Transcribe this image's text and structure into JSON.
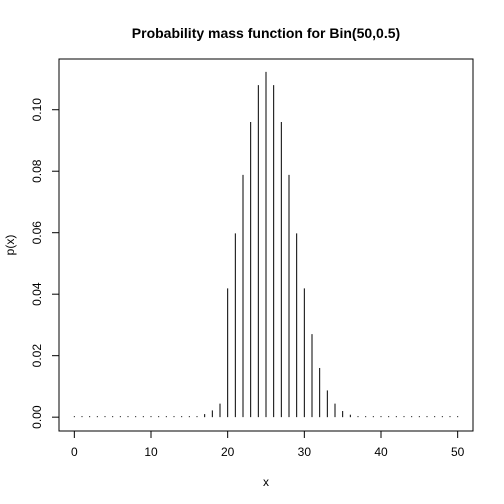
{
  "chart_data": {
    "type": "bar",
    "title": "Probability mass function for Bin(50,0.5)",
    "xlabel": "x",
    "ylabel": "p(x)",
    "xlim": [
      -2,
      52
    ],
    "ylim": [
      -0.0045,
      0.1165
    ],
    "x_ticks": [
      0,
      10,
      20,
      30,
      40,
      50
    ],
    "x_tick_labels": [
      "0",
      "10",
      "20",
      "30",
      "40",
      "50"
    ],
    "y_ticks": [
      0.0,
      0.02,
      0.04,
      0.06,
      0.08,
      0.1
    ],
    "y_tick_labels": [
      "0.00",
      "0.02",
      "0.04",
      "0.06",
      "0.08",
      "0.10"
    ],
    "grid": false,
    "legend": "none",
    "line_color": "#000000",
    "x": [
      0,
      1,
      2,
      3,
      4,
      5,
      6,
      7,
      8,
      9,
      10,
      11,
      12,
      13,
      14,
      15,
      16,
      17,
      18,
      19,
      20,
      21,
      22,
      23,
      24,
      25,
      26,
      27,
      28,
      29,
      30,
      31,
      32,
      33,
      34,
      35,
      36,
      37,
      38,
      39,
      40,
      41,
      42,
      43,
      44,
      45,
      46,
      47,
      48,
      49,
      50
    ],
    "values": [
      0,
      0,
      0,
      0,
      0,
      0,
      0,
      0,
      0,
      0,
      0,
      1e-07,
      4e-07,
      2e-06,
      8e-06,
      2.4e-05,
      5e-05,
      0.001,
      0.0022,
      0.0044,
      0.0419,
      0.0598,
      0.0788,
      0.096,
      0.108,
      0.1123,
      0.108,
      0.096,
      0.0788,
      0.0598,
      0.0419,
      0.027,
      0.016,
      0.0087,
      0.0044,
      0.002,
      0.0008,
      0.0003,
      0.0001,
      3e-05,
      1e-05,
      0,
      0,
      0,
      0,
      0,
      0,
      0,
      0,
      0,
      0
    ]
  }
}
